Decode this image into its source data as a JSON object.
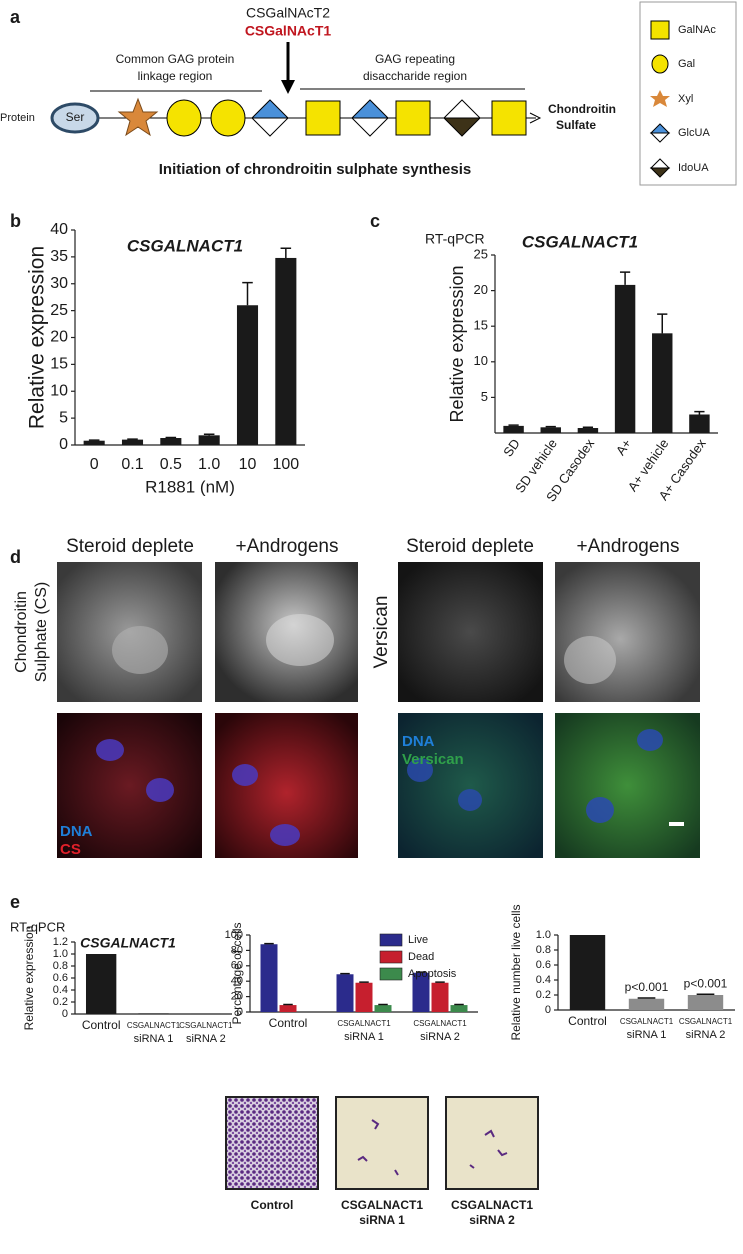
{
  "panel_labels": [
    "a",
    "b",
    "c",
    "d",
    "e"
  ],
  "diagram": {
    "enzymes": [
      "CSGalNAcT2",
      "CSGalNAcT1"
    ],
    "regions": [
      [
        "Common GAG protein",
        "linkage region"
      ],
      [
        "GAG repeating",
        "disaccharide region"
      ]
    ],
    "protein": "Protein",
    "residue": "Ser",
    "product": [
      "Chondroitin",
      "Sulfate"
    ],
    "title": "Initiation of chrondroitin sulphate synthesis",
    "legend": [
      "GalNAc",
      "Gal",
      "Xyl",
      "GlcUA",
      "IdoUA"
    ]
  },
  "chart_data": [
    {
      "type": "bar",
      "title": "CSGALNACT1",
      "x_label": "R1881 (nM)",
      "y_label": "Relative expression",
      "categories": [
        "0",
        "0.1",
        "0.5",
        "1.0",
        "10",
        "100"
      ],
      "values": [
        0.8,
        1.0,
        1.3,
        1.8,
        26,
        34.8
      ],
      "errors": [
        0.1,
        0.1,
        0.1,
        0.2,
        4.2,
        1.8
      ],
      "color": "#1a1a1a",
      "ylim": [
        0,
        40
      ],
      "yticks": [
        0,
        5,
        10,
        15,
        20,
        25,
        30,
        35,
        40
      ]
    },
    {
      "type": "bar",
      "subtitle": "RT-qPCR",
      "title": "CSGALNACT1",
      "y_label": "Relative expression",
      "categories": [
        "SD",
        "SD vehicle",
        "SD Casodex",
        "A+",
        "A+ vehicle",
        "A+ Casodex"
      ],
      "values": [
        1.0,
        0.8,
        0.7,
        20.8,
        14.0,
        2.6
      ],
      "errors": [
        0.1,
        0.1,
        0.1,
        1.8,
        2.7,
        0.4
      ],
      "color": "#1a1a1a",
      "ylim": [
        0,
        25
      ],
      "yticks": [
        5,
        10,
        15,
        20,
        25
      ]
    },
    {
      "type": "bar",
      "subtitle": "RT-qPCR",
      "title": "CSGALNACT1",
      "y_label": "Relative expression",
      "categories": [
        "Control",
        [
          "CSGALNACT1",
          "siRNA 1"
        ],
        [
          "CSGALNACT1",
          "siRNA 2"
        ]
      ],
      "values": [
        1.0,
        0.01,
        0.005
      ],
      "color": "#1a1a1a",
      "ylim": [
        0,
        1.2
      ],
      "yticks": [
        0,
        0.2,
        0.4,
        0.6,
        0.8,
        {
          "value": 1,
          "label": "1.0"
        },
        1.2
      ]
    },
    {
      "type": "bar",
      "y_label": "Percentage of cells",
      "categories": [
        "Control",
        [
          "CSGALNACT1",
          "siRNA 1"
        ],
        [
          "CSGALNACT1",
          "siRNA 2"
        ]
      ],
      "series": [
        {
          "name": "Live",
          "color": "#2b2b8c",
          "values": [
            88,
            49,
            51
          ],
          "errors": [
            0.8,
            0.8,
            0.8
          ]
        },
        {
          "name": "Dead",
          "color": "#c61f2e",
          "values": [
            9,
            38,
            38
          ],
          "errors": [
            0.8,
            0.8,
            0.8
          ]
        },
        {
          "name": "Apoptosis",
          "color": "#3c8a4c",
          "values": [
            0,
            9,
            9
          ],
          "errors": [
            0,
            0.8,
            0.8
          ]
        }
      ],
      "ylim": [
        0,
        100
      ],
      "yticks": [
        0,
        20,
        40,
        60,
        80,
        100
      ]
    },
    {
      "type": "bar",
      "y_label": "Relative number live cells",
      "categories": [
        "Control",
        [
          "CSGALNACT1",
          "siRNA 1"
        ],
        [
          "CSGALNACT1",
          "siRNA 2"
        ]
      ],
      "values": [
        1.0,
        0.15,
        0.2
      ],
      "errors": [
        0,
        0.01,
        0.01
      ],
      "colors": [
        "#1a1a1a",
        "#8c8c8c",
        "#8c8c8c"
      ],
      "bar_annotations": [
        null,
        "p<0.001",
        "p<0.001"
      ],
      "ylim": [
        0,
        1
      ],
      "yticks": [
        0,
        0.2,
        0.4,
        0.6,
        0.8,
        {
          "value": 1,
          "label": "1.0"
        }
      ]
    }
  ],
  "micrographs": {
    "columns": [
      "Steroid deplete",
      "+Androgens",
      "Steroid deplete",
      "+Androgens"
    ],
    "rows": [
      [
        "Chondroitin",
        "Sulphate (CS)"
      ],
      [
        "Versican"
      ]
    ],
    "overlays": [
      [
        "DNA",
        "CS"
      ],
      [
        "DNA",
        "Versican"
      ]
    ]
  },
  "invasion": {
    "labels": [
      "Control",
      [
        "CSGALNACT1",
        "siRNA 1"
      ],
      [
        "CSGALNACT1",
        "siRNA 2"
      ]
    ]
  }
}
